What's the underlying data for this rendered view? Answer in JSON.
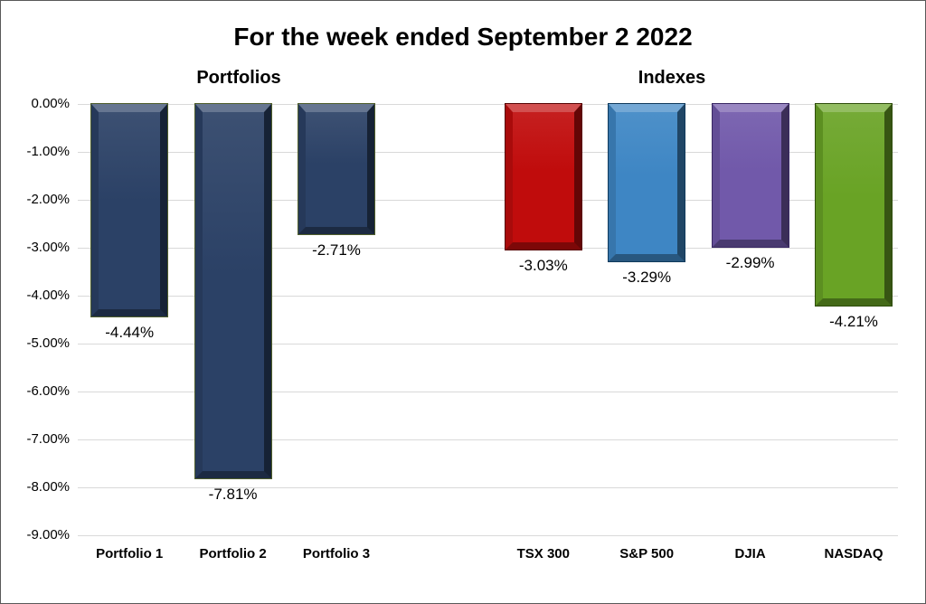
{
  "title": "For the week ended September 2 2022",
  "group_labels": {
    "left": "Portfolios",
    "right": "Indexes"
  },
  "chart_data": {
    "type": "bar",
    "title": "For the week ended September 2 2022",
    "xlabel": "",
    "ylabel": "",
    "ylim": [
      -9,
      0
    ],
    "grid": true,
    "legend": "none",
    "yticks": [
      "0.00%",
      "-1.00%",
      "-2.00%",
      "-3.00%",
      "-4.00%",
      "-5.00%",
      "-6.00%",
      "-7.00%",
      "-8.00%",
      "-9.00%"
    ],
    "categories": [
      "Portfolio 1",
      "Portfolio 2",
      "Portfolio 3",
      "TSX 300",
      "S&P 500",
      "DJIA",
      "NASDAQ"
    ],
    "values": [
      -4.44,
      -7.81,
      -2.71,
      -3.03,
      -3.29,
      -2.99,
      -4.21
    ],
    "bars": [
      {
        "category": "Portfolio 1",
        "value": -4.44,
        "label": "-4.44%",
        "slot": 0,
        "color": "#2b4166",
        "outline": "#4f5e2b"
      },
      {
        "category": "Portfolio 2",
        "value": -7.81,
        "label": "-7.81%",
        "slot": 1,
        "color": "#2b4166",
        "outline": "#4f5e2b"
      },
      {
        "category": "Portfolio 3",
        "value": -2.71,
        "label": "-2.71%",
        "slot": 2,
        "color": "#2b4166",
        "outline": "#4f5e2b"
      },
      {
        "category": "TSX 300",
        "value": -3.03,
        "label": "-3.03%",
        "slot": 4,
        "color": "#c00c0c",
        "outline": "#560303"
      },
      {
        "category": "S&P 500",
        "value": -3.29,
        "label": "-3.29%",
        "slot": 5,
        "color": "#3e86c4",
        "outline": "#103a5c"
      },
      {
        "category": "DJIA",
        "value": -2.99,
        "label": "-2.99%",
        "slot": 6,
        "color": "#7159aa",
        "outline": "#392863"
      },
      {
        "category": "NASDAQ",
        "value": -4.21,
        "label": "-4.21%",
        "slot": 7,
        "color": "#69a325",
        "outline": "#2f4d0c"
      }
    ]
  }
}
